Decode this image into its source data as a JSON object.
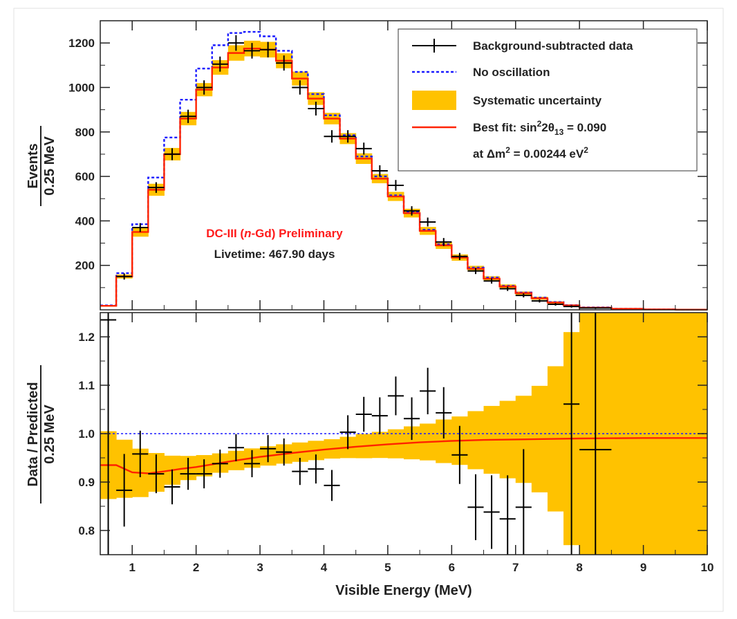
{
  "chart_data": [
    {
      "type": "line",
      "panel": "top",
      "ylabel_num": "Events",
      "ylabel_den": "0.25 MeV",
      "xlim": [
        0.5,
        10
      ],
      "ylim": [
        0,
        1300
      ],
      "yticks": [
        "200",
        "400",
        "600",
        "800",
        "1000",
        "1200"
      ],
      "ytick_values": [
        200,
        400,
        600,
        800,
        1000,
        1200
      ],
      "bin_edges": [
        0.5,
        0.75,
        1.0,
        1.25,
        1.5,
        1.75,
        2.0,
        2.25,
        2.5,
        2.75,
        3.0,
        3.25,
        3.5,
        3.75,
        4.0,
        4.25,
        4.5,
        4.75,
        5.0,
        5.25,
        5.5,
        5.75,
        6.0,
        6.25,
        6.5,
        6.75,
        7.0,
        7.25,
        7.5,
        7.75,
        8.0,
        8.5,
        9.0,
        9.5,
        10.0
      ],
      "series": [
        {
          "name": "Best fit",
          "role": "best_fit",
          "color": "#ff2200",
          "values": [
            18,
            150,
            350,
            540,
            700,
            860,
            990,
            1090,
            1155,
            1175,
            1170,
            1120,
            1040,
            950,
            860,
            770,
            680,
            590,
            510,
            435,
            355,
            290,
            235,
            185,
            140,
            105,
            75,
            52,
            33,
            20,
            10,
            5,
            2,
            1
          ]
        },
        {
          "name": "No oscillation",
          "role": "no_osc",
          "color": "#1a1aff",
          "values": [
            20,
            165,
            385,
            595,
            775,
            945,
            1085,
            1190,
            1245,
            1250,
            1230,
            1165,
            1070,
            970,
            875,
            785,
            690,
            600,
            515,
            440,
            360,
            295,
            240,
            190,
            145,
            108,
            78,
            55,
            35,
            21,
            11,
            5,
            2,
            1
          ]
        },
        {
          "name": "Background-subtracted data",
          "role": "data",
          "color": "#000000",
          "x": [
            0.875,
            1.125,
            1.375,
            1.625,
            1.875,
            2.125,
            2.375,
            2.625,
            2.875,
            3.125,
            3.375,
            3.625,
            3.875,
            4.125,
            4.375,
            4.625,
            4.875,
            5.125,
            5.375,
            5.625,
            5.875,
            6.125,
            6.375,
            6.625,
            6.875,
            7.125,
            7.375,
            7.625,
            7.875,
            8.25
          ],
          "values": [
            150,
            370,
            550,
            700,
            870,
            1000,
            1105,
            1200,
            1165,
            1170,
            1110,
            1000,
            905,
            780,
            780,
            725,
            625,
            560,
            445,
            395,
            305,
            240,
            175,
            130,
            95,
            65,
            40,
            25,
            15,
            8
          ],
          "yerr": [
            14,
            20,
            24,
            27,
            30,
            32,
            34,
            35,
            35,
            35,
            34,
            32,
            31,
            28,
            28,
            27,
            25,
            24,
            21,
            20,
            18,
            16,
            14,
            12,
            10,
            9,
            7,
            6,
            5,
            4
          ]
        }
      ],
      "systematic_band": {
        "name": "Systematic uncertainty",
        "color": "#ffc200",
        "rel_half_width": [
          0.06,
          0.06,
          0.06,
          0.05,
          0.04,
          0.035,
          0.03,
          0.03,
          0.03,
          0.03,
          0.03,
          0.03,
          0.03,
          0.03,
          0.03,
          0.032,
          0.035,
          0.035,
          0.04,
          0.045,
          0.05,
          0.055,
          0.06,
          0.07,
          0.08,
          0.09,
          0.1,
          0.13,
          0.15,
          0.2,
          0.25,
          0.3,
          0.3,
          0.3
        ]
      }
    },
    {
      "type": "line",
      "panel": "bottom",
      "xlabel": "Visible Energy (MeV)",
      "ylabel_num": "Data / Predicted",
      "ylabel_den": "0.25 MeV",
      "xlim": [
        0.5,
        10
      ],
      "ylim": [
        0.75,
        1.25
      ],
      "xticks": [
        "1",
        "2",
        "3",
        "4",
        "5",
        "6",
        "7",
        "8",
        "9",
        "10"
      ],
      "xtick_values": [
        1,
        2,
        3,
        4,
        5,
        6,
        7,
        8,
        9,
        10
      ],
      "yticks": [
        "0.8",
        "0.9",
        "1.0",
        "1.1",
        "1.2"
      ],
      "ytick_values": [
        0.8,
        0.9,
        1.0,
        1.1,
        1.2
      ],
      "reference_line": 1.0,
      "best_fit_ratio": {
        "x": [
          0.5,
          0.75,
          1.0,
          1.25,
          1.5,
          1.75,
          2.0,
          2.5,
          3.0,
          3.5,
          4.0,
          4.5,
          5.0,
          5.5,
          6.0,
          6.5,
          7.0,
          7.5,
          8.0,
          9.0,
          10.0
        ],
        "y": [
          0.935,
          0.935,
          0.92,
          0.918,
          0.922,
          0.927,
          0.931,
          0.942,
          0.952,
          0.96,
          0.967,
          0.973,
          0.978,
          0.982,
          0.985,
          0.987,
          0.988,
          0.989,
          0.99,
          0.991,
          0.991
        ]
      },
      "band_edges": [
        0.5,
        0.75,
        1.0,
        1.25,
        1.5,
        1.75,
        2.0,
        2.25,
        2.5,
        2.75,
        3.0,
        3.25,
        3.5,
        3.75,
        4.0,
        4.25,
        4.5,
        4.75,
        5.0,
        5.25,
        5.5,
        5.75,
        6.0,
        6.25,
        6.5,
        6.75,
        7.0,
        7.25,
        7.5,
        7.75,
        8.0,
        8.5,
        9.0,
        9.5,
        10.0
      ],
      "band_half_width": [
        0.07,
        0.06,
        0.05,
        0.04,
        0.03,
        0.025,
        0.022,
        0.02,
        0.02,
        0.02,
        0.02,
        0.02,
        0.02,
        0.02,
        0.02,
        0.022,
        0.025,
        0.027,
        0.03,
        0.034,
        0.038,
        0.045,
        0.05,
        0.06,
        0.07,
        0.08,
        0.09,
        0.11,
        0.15,
        0.22,
        0.35,
        0.5,
        0.5,
        0.5
      ],
      "data": {
        "x": [
          0.875,
          1.125,
          1.375,
          1.625,
          1.875,
          2.125,
          2.375,
          2.625,
          2.875,
          3.125,
          3.375,
          3.625,
          3.875,
          4.125,
          4.375,
          4.625,
          4.875,
          5.125,
          5.375,
          5.625,
          5.875,
          6.125,
          6.375,
          6.625,
          6.875,
          7.125,
          7.875,
          8.25
        ],
        "y": [
          0.883,
          0.958,
          0.917,
          0.89,
          0.917,
          0.917,
          0.938,
          0.971,
          0.938,
          0.969,
          0.962,
          0.922,
          0.927,
          0.893,
          1.003,
          1.04,
          1.037,
          1.078,
          1.031,
          1.088,
          1.043,
          0.956,
          0.848,
          0.838,
          0.824,
          0.848,
          1.061,
          0.967
        ],
        "yerr": [
          0.075,
          0.048,
          0.04,
          0.036,
          0.033,
          0.03,
          0.029,
          0.028,
          0.028,
          0.028,
          0.028,
          0.028,
          0.03,
          0.032,
          0.035,
          0.036,
          0.038,
          0.04,
          0.044,
          0.048,
          0.053,
          0.06,
          0.068,
          0.076,
          0.09,
          0.12,
          0.4,
          0.55
        ],
        "xerr": [
          0.125,
          0.125,
          0.125,
          0.125,
          0.125,
          0.125,
          0.125,
          0.125,
          0.125,
          0.125,
          0.125,
          0.125,
          0.125,
          0.125,
          0.125,
          0.125,
          0.125,
          0.125,
          0.125,
          0.125,
          0.125,
          0.125,
          0.125,
          0.125,
          0.125,
          0.125,
          0.125,
          0.25
        ],
        "first_point": {
          "x": 0.625,
          "y": 1.25,
          "yerr": 0.5
        }
      }
    }
  ],
  "legend": {
    "data_label": "Background-subtracted data",
    "noosc_label": "No oscillation",
    "syst_label": "Systematic uncertainty",
    "fit_label_prefix": "Best fit: sin",
    "fit_label_sup": "2",
    "fit_label_mid": "2θ",
    "fit_label_sub": "13",
    "fit_label_suffix": " = 0.090",
    "fit_line2_prefix": "at  Δm",
    "fit_line2_sup": "2",
    "fit_line2_suffix": " = 0.00244 eV",
    "fit_line2_sup2": "2"
  },
  "annotations": {
    "experiment_prefix": "DC-III (",
    "experiment_italic": "n",
    "experiment_suffix": "-Gd) Preliminary",
    "livetime": "Livetime: 467.90 days"
  },
  "colors": {
    "best_fit": "#ff2200",
    "no_osc": "#1a1aff",
    "band": "#ffc200",
    "data": "#000000"
  }
}
